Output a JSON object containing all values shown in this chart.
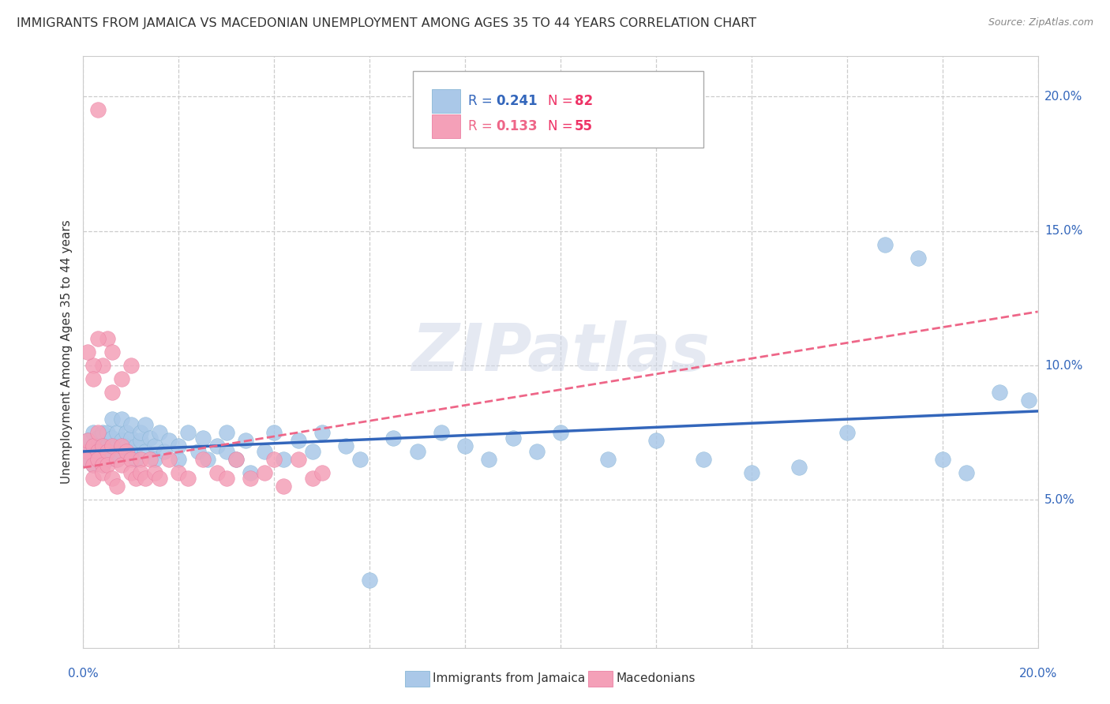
{
  "title": "IMMIGRANTS FROM JAMAICA VS MACEDONIAN UNEMPLOYMENT AMONG AGES 35 TO 44 YEARS CORRELATION CHART",
  "source": "Source: ZipAtlas.com",
  "ylabel": "Unemployment Among Ages 35 to 44 years",
  "xlim": [
    0.0,
    0.2
  ],
  "ylim": [
    -0.005,
    0.215
  ],
  "yticks": [
    0.05,
    0.1,
    0.15,
    0.2
  ],
  "ytick_labels": [
    "5.0%",
    "10.0%",
    "15.0%",
    "20.0%"
  ],
  "xtick_labels": [
    "0.0%",
    "20.0%"
  ],
  "background_color": "#ffffff",
  "grid_color": "#cccccc",
  "jamaica_color": "#aac8e8",
  "macedonia_color": "#f4a0b8",
  "jamaica_edge_color": "#7aaed0",
  "macedonia_edge_color": "#e87098",
  "jamaica_line_color": "#3366bb",
  "macedonia_line_color": "#ee6688",
  "legend_R1": "0.241",
  "legend_N1": "82",
  "legend_R2": "0.133",
  "legend_N2": "55",
  "legend_label1": "Immigrants from Jamaica",
  "legend_label2": "Macedonians",
  "watermark": "ZIPatlas",
  "jamaica_scatter": [
    [
      0.001,
      0.068
    ],
    [
      0.001,
      0.072
    ],
    [
      0.001,
      0.065
    ],
    [
      0.002,
      0.07
    ],
    [
      0.002,
      0.075
    ],
    [
      0.002,
      0.063
    ],
    [
      0.003,
      0.068
    ],
    [
      0.003,
      0.073
    ],
    [
      0.003,
      0.065
    ],
    [
      0.003,
      0.07
    ],
    [
      0.004,
      0.068
    ],
    [
      0.004,
      0.075
    ],
    [
      0.004,
      0.063
    ],
    [
      0.005,
      0.07
    ],
    [
      0.005,
      0.075
    ],
    [
      0.005,
      0.065
    ],
    [
      0.006,
      0.068
    ],
    [
      0.006,
      0.073
    ],
    [
      0.006,
      0.08
    ],
    [
      0.007,
      0.07
    ],
    [
      0.007,
      0.075
    ],
    [
      0.007,
      0.065
    ],
    [
      0.008,
      0.072
    ],
    [
      0.008,
      0.08
    ],
    [
      0.008,
      0.068
    ],
    [
      0.009,
      0.07
    ],
    [
      0.009,
      0.075
    ],
    [
      0.01,
      0.068
    ],
    [
      0.01,
      0.073
    ],
    [
      0.01,
      0.078
    ],
    [
      0.011,
      0.07
    ],
    [
      0.011,
      0.065
    ],
    [
      0.012,
      0.072
    ],
    [
      0.012,
      0.075
    ],
    [
      0.013,
      0.068
    ],
    [
      0.013,
      0.078
    ],
    [
      0.014,
      0.073
    ],
    [
      0.015,
      0.07
    ],
    [
      0.015,
      0.065
    ],
    [
      0.016,
      0.075
    ],
    [
      0.017,
      0.068
    ],
    [
      0.018,
      0.072
    ],
    [
      0.02,
      0.07
    ],
    [
      0.02,
      0.065
    ],
    [
      0.022,
      0.075
    ],
    [
      0.024,
      0.068
    ],
    [
      0.025,
      0.073
    ],
    [
      0.026,
      0.065
    ],
    [
      0.028,
      0.07
    ],
    [
      0.03,
      0.075
    ],
    [
      0.03,
      0.068
    ],
    [
      0.032,
      0.065
    ],
    [
      0.034,
      0.072
    ],
    [
      0.035,
      0.06
    ],
    [
      0.038,
      0.068
    ],
    [
      0.04,
      0.075
    ],
    [
      0.042,
      0.065
    ],
    [
      0.045,
      0.072
    ],
    [
      0.048,
      0.068
    ],
    [
      0.05,
      0.075
    ],
    [
      0.055,
      0.07
    ],
    [
      0.058,
      0.065
    ],
    [
      0.06,
      0.02
    ],
    [
      0.065,
      0.073
    ],
    [
      0.07,
      0.068
    ],
    [
      0.075,
      0.075
    ],
    [
      0.08,
      0.07
    ],
    [
      0.085,
      0.065
    ],
    [
      0.09,
      0.073
    ],
    [
      0.095,
      0.068
    ],
    [
      0.1,
      0.075
    ],
    [
      0.11,
      0.065
    ],
    [
      0.12,
      0.072
    ],
    [
      0.13,
      0.065
    ],
    [
      0.14,
      0.06
    ],
    [
      0.15,
      0.062
    ],
    [
      0.16,
      0.075
    ],
    [
      0.168,
      0.145
    ],
    [
      0.175,
      0.14
    ],
    [
      0.18,
      0.065
    ],
    [
      0.185,
      0.06
    ],
    [
      0.192,
      0.09
    ],
    [
      0.198,
      0.087
    ]
  ],
  "macedonia_scatter": [
    [
      0.001,
      0.068
    ],
    [
      0.001,
      0.072
    ],
    [
      0.001,
      0.065
    ],
    [
      0.002,
      0.063
    ],
    [
      0.002,
      0.07
    ],
    [
      0.002,
      0.058
    ],
    [
      0.003,
      0.068
    ],
    [
      0.003,
      0.065
    ],
    [
      0.003,
      0.075
    ],
    [
      0.003,
      0.195
    ],
    [
      0.004,
      0.063
    ],
    [
      0.004,
      0.07
    ],
    [
      0.004,
      0.06
    ],
    [
      0.005,
      0.11
    ],
    [
      0.005,
      0.068
    ],
    [
      0.005,
      0.063
    ],
    [
      0.006,
      0.07
    ],
    [
      0.006,
      0.058
    ],
    [
      0.007,
      0.065
    ],
    [
      0.007,
      0.055
    ],
    [
      0.008,
      0.07
    ],
    [
      0.008,
      0.063
    ],
    [
      0.009,
      0.068
    ],
    [
      0.01,
      0.065
    ],
    [
      0.01,
      0.06
    ],
    [
      0.011,
      0.058
    ],
    [
      0.012,
      0.065
    ],
    [
      0.012,
      0.06
    ],
    [
      0.013,
      0.058
    ],
    [
      0.014,
      0.065
    ],
    [
      0.015,
      0.06
    ],
    [
      0.016,
      0.058
    ],
    [
      0.018,
      0.065
    ],
    [
      0.02,
      0.06
    ],
    [
      0.022,
      0.058
    ],
    [
      0.025,
      0.065
    ],
    [
      0.028,
      0.06
    ],
    [
      0.03,
      0.058
    ],
    [
      0.032,
      0.065
    ],
    [
      0.035,
      0.058
    ],
    [
      0.038,
      0.06
    ],
    [
      0.04,
      0.065
    ],
    [
      0.042,
      0.055
    ],
    [
      0.045,
      0.065
    ],
    [
      0.048,
      0.058
    ],
    [
      0.05,
      0.06
    ],
    [
      0.004,
      0.1
    ],
    [
      0.006,
      0.105
    ],
    [
      0.008,
      0.095
    ],
    [
      0.01,
      0.1
    ],
    [
      0.003,
      0.11
    ],
    [
      0.002,
      0.1
    ],
    [
      0.002,
      0.095
    ],
    [
      0.006,
      0.09
    ],
    [
      0.001,
      0.105
    ]
  ],
  "jamaica_trend_x": [
    0.0,
    0.2
  ],
  "jamaica_trend_y": [
    0.068,
    0.083
  ],
  "macedonia_trend_x": [
    0.0,
    0.2
  ],
  "macedonia_trend_y": [
    0.062,
    0.12
  ]
}
